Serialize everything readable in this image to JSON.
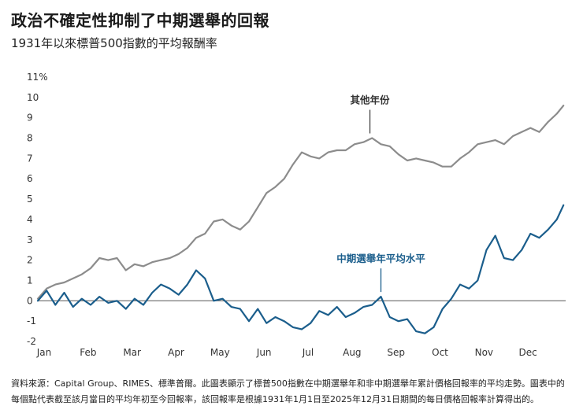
{
  "title": "政治不確定性抑制了中期選舉的回報",
  "subtitle": "1931年以來標普500指數的平均報酬率",
  "footnote": "資料來源：Capital Group、RIMES、標準普爾。此圖表顯示了標普500指數在中期選舉年和非中期選舉年累計價格回報率的平均走勢。圖表中的每個點代表截至該月當日的平均年初至今回報率，該回報率是根據1931年1月1日至2025年12月31日期間的每日價格回報率計算得出的。",
  "chart_data": {
    "type": "line",
    "title": "政治不確定性抑制了中期選舉的回報",
    "subtitle": "1931年以來標普500指數的平均報酬率",
    "categories": [
      "Jan",
      "Feb",
      "Mar",
      "Apr",
      "May",
      "Jun",
      "Jul",
      "Aug",
      "Sep",
      "Oct",
      "Nov",
      "Dec"
    ],
    "y_ticks": [
      "11%",
      "10",
      "9",
      "8",
      "7",
      "6",
      "5",
      "4",
      "3",
      "2",
      "1",
      "0",
      "-1",
      "-2"
    ],
    "ylim": [
      -2,
      11
    ],
    "xlim": [
      0,
      12
    ],
    "series": [
      {
        "name": "其他年份",
        "color": "#8c8c8c",
        "x": [
          0,
          0.2,
          0.4,
          0.6,
          0.8,
          1.0,
          1.2,
          1.4,
          1.6,
          1.8,
          2.0,
          2.2,
          2.4,
          2.6,
          2.8,
          3.0,
          3.2,
          3.4,
          3.6,
          3.8,
          4.0,
          4.2,
          4.4,
          4.6,
          4.8,
          5.0,
          5.2,
          5.4,
          5.6,
          5.8,
          6.0,
          6.2,
          6.4,
          6.6,
          6.8,
          7.0,
          7.2,
          7.4,
          7.6,
          7.8,
          8.0,
          8.2,
          8.4,
          8.6,
          8.8,
          9.0,
          9.2,
          9.4,
          9.6,
          9.8,
          10.0,
          10.2,
          10.4,
          10.6,
          10.8,
          11.0,
          11.2,
          11.4,
          11.6,
          11.8,
          11.95
        ],
        "values": [
          0.1,
          0.6,
          0.8,
          0.9,
          1.1,
          1.3,
          1.6,
          2.1,
          2.0,
          2.1,
          1.5,
          1.8,
          1.7,
          1.9,
          2.0,
          2.1,
          2.3,
          2.6,
          3.1,
          3.3,
          3.9,
          4.0,
          3.7,
          3.5,
          3.9,
          4.6,
          5.3,
          5.6,
          6.0,
          6.7,
          7.3,
          7.1,
          7.0,
          7.3,
          7.4,
          7.4,
          7.7,
          7.8,
          8.0,
          7.7,
          7.6,
          7.2,
          6.9,
          7.0,
          6.9,
          6.8,
          6.6,
          6.6,
          7.0,
          7.3,
          7.7,
          7.8,
          7.9,
          7.7,
          8.1,
          8.3,
          8.5,
          8.3,
          8.8,
          9.2,
          9.6
        ]
      },
      {
        "name": "中期選舉年平均水平",
        "color": "#1b5e8c",
        "x": [
          0,
          0.2,
          0.4,
          0.6,
          0.8,
          1.0,
          1.2,
          1.4,
          1.6,
          1.8,
          2.0,
          2.2,
          2.4,
          2.6,
          2.8,
          3.0,
          3.2,
          3.4,
          3.6,
          3.8,
          4.0,
          4.2,
          4.4,
          4.6,
          4.8,
          5.0,
          5.2,
          5.4,
          5.6,
          5.8,
          6.0,
          6.2,
          6.4,
          6.6,
          6.8,
          7.0,
          7.2,
          7.4,
          7.6,
          7.8,
          8.0,
          8.2,
          8.4,
          8.6,
          8.8,
          9.0,
          9.2,
          9.4,
          9.6,
          9.8,
          10.0,
          10.2,
          10.4,
          10.6,
          10.8,
          11.0,
          11.2,
          11.4,
          11.6,
          11.8,
          11.95
        ],
        "values": [
          0.0,
          0.5,
          -0.2,
          0.4,
          -0.3,
          0.1,
          -0.2,
          0.2,
          -0.1,
          0.0,
          -0.4,
          0.1,
          -0.2,
          0.4,
          0.8,
          0.6,
          0.3,
          0.8,
          1.5,
          1.1,
          0.0,
          0.1,
          -0.3,
          -0.4,
          -1.0,
          -0.4,
          -1.1,
          -0.8,
          -1.0,
          -1.3,
          -1.4,
          -1.1,
          -0.5,
          -0.7,
          -0.3,
          -0.8,
          -0.6,
          -0.3,
          -0.2,
          0.2,
          -0.8,
          -1.0,
          -0.9,
          -1.5,
          -1.6,
          -1.3,
          -0.4,
          0.1,
          0.8,
          0.6,
          1.0,
          2.5,
          3.2,
          2.1,
          2.0,
          2.5,
          3.3,
          3.1,
          3.5,
          4.0,
          4.7
        ]
      }
    ],
    "annotations": [
      {
        "text": "其他年份",
        "series": 0,
        "at_x": 7.55
      },
      {
        "text": "中期選舉年平均水平",
        "series": 1,
        "at_x": 7.8
      }
    ]
  }
}
